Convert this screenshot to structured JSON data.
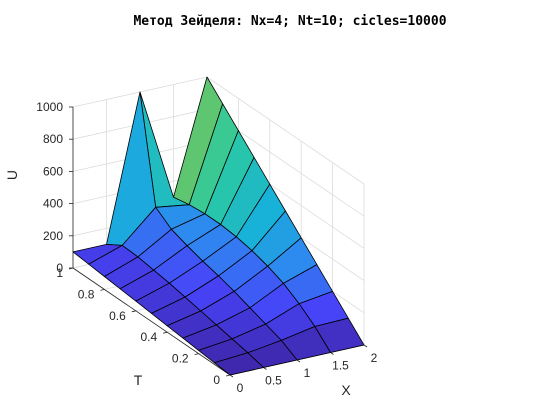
{
  "chart_data": {
    "type": "surface",
    "title": "Метод Зейделя: Nx=4; Nt=10; cicles=10000",
    "xlabel": "X",
    "ylabel": "T",
    "zlabel": "U",
    "xlim": [
      0,
      2
    ],
    "ylim": [
      0,
      1
    ],
    "zlim": [
      0,
      1000
    ],
    "x_ticks": [
      "0",
      "0.5",
      "1",
      "1.5",
      "2"
    ],
    "y_ticks": [
      "0",
      "0.2",
      "0.4",
      "0.6",
      "0.8",
      "1"
    ],
    "z_ticks": [
      "0",
      "200",
      "400",
      "600",
      "800",
      "1000"
    ],
    "grid": true,
    "colormap": [
      "#3e26a8",
      "#4743f8",
      "#2f87f1",
      "#18b1d9",
      "#2ccaa0",
      "#a5be2b",
      "#f8ba3d",
      "#f9fb15"
    ],
    "x": [
      0,
      0.5,
      1,
      1.5,
      2
    ],
    "t": [
      0,
      0.1,
      0.2,
      0.3,
      0.4,
      0.5,
      0.6,
      0.7,
      0.8,
      0.9,
      1.0
    ],
    "u": [
      [
        0,
        0,
        0,
        0,
        0
      ],
      [
        10,
        25,
        55,
        95,
        100
      ],
      [
        20,
        45,
        90,
        170,
        200
      ],
      [
        30,
        65,
        125,
        230,
        300
      ],
      [
        40,
        85,
        160,
        270,
        400
      ],
      [
        50,
        105,
        190,
        300,
        500
      ],
      [
        60,
        125,
        215,
        320,
        600
      ],
      [
        70,
        140,
        245,
        330,
        700
      ],
      [
        80,
        155,
        280,
        330,
        800
      ],
      [
        90,
        160,
        350,
        320,
        900
      ],
      [
        100,
        100,
        1000,
        300,
        1000
      ]
    ]
  }
}
